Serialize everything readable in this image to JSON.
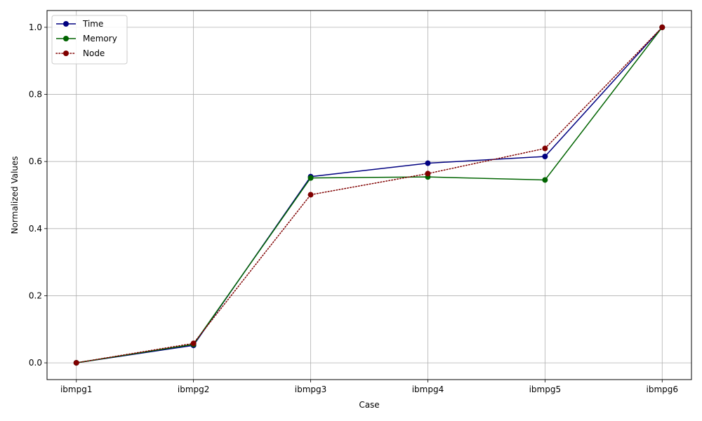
{
  "chart_data": {
    "type": "line",
    "title": "",
    "xlabel": "Case",
    "ylabel": "Normalized Values",
    "categories": [
      "ibmpg1",
      "ibmpg2",
      "ibmpg3",
      "ibmpg4",
      "ibmpg5",
      "ibmpg6"
    ],
    "yticks": [
      "0.0",
      "0.2",
      "0.4",
      "0.6",
      "0.8",
      "1.0"
    ],
    "ylim": [
      -0.05,
      1.05
    ],
    "grid": true,
    "legend_position": "top-left",
    "series": [
      {
        "name": "Time",
        "values": [
          0.0,
          0.052,
          0.555,
          0.595,
          0.615,
          1.0
        ],
        "color": "#000080",
        "line_style": "solid",
        "marker": "circle"
      },
      {
        "name": "Memory",
        "values": [
          0.0,
          0.055,
          0.551,
          0.554,
          0.545,
          1.0
        ],
        "color": "#006400",
        "line_style": "solid",
        "marker": "circle"
      },
      {
        "name": "Node",
        "values": [
          0.0,
          0.058,
          0.501,
          0.564,
          0.639,
          1.0
        ],
        "color": "#800000",
        "line_style": "dotted",
        "marker": "circle"
      }
    ]
  }
}
